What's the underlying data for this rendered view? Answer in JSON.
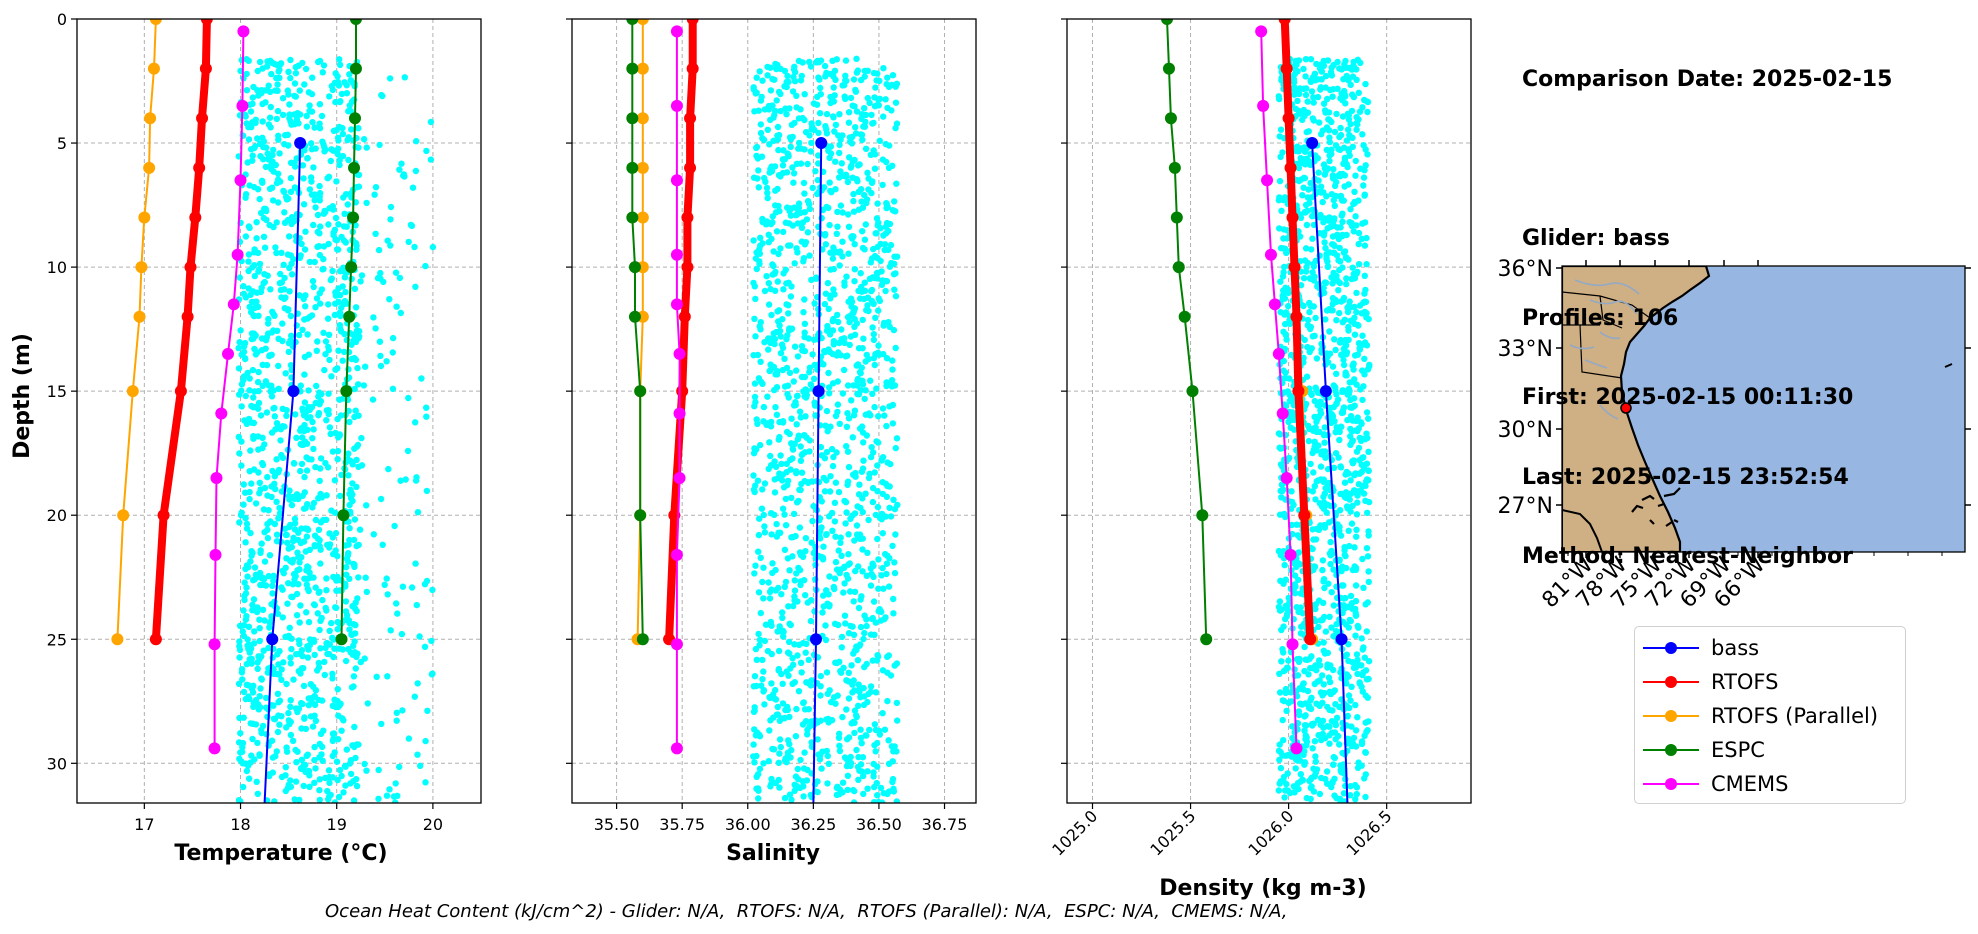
{
  "info": {
    "comparison_date": "Comparison Date: 2025-02-15",
    "glider": "Glider: bass",
    "profiles": "Profiles: 106",
    "first": "First: 2025-02-15 00:11:30",
    "last": "Last: 2025-02-15 23:52:54",
    "method": "Method: Nearest-Neighbor"
  },
  "footer": "Ocean Heat Content (kJ/cm^2) - Glider: N/A,  RTOFS: N/A,  RTOFS (Parallel): N/A,  ESPC: N/A,  CMEMS: N/A,",
  "legend": [
    {
      "name": "bass",
      "color": "#0000ff"
    },
    {
      "name": "RTOFS",
      "color": "#ff0000"
    },
    {
      "name": "RTOFS (Parallel)",
      "color": "#ffa500"
    },
    {
      "name": "ESPC",
      "color": "#008000"
    },
    {
      "name": "CMEMS",
      "color": "#ff00ff"
    }
  ],
  "colors": {
    "scatter": "#00ffff",
    "ocean": "#97b6e1",
    "land": "#cfaf84",
    "marker": "#ff0000"
  },
  "chart_data": [
    {
      "type": "line",
      "xlabel": "Temperature (°C)",
      "ylabel": "Depth (m)",
      "xlim": [
        16.3,
        20.5
      ],
      "ylim": [
        31.6,
        0
      ],
      "grid": true,
      "xticks": [
        17,
        18,
        19,
        20
      ],
      "yticks": [
        0,
        5,
        10,
        15,
        20,
        25,
        30
      ],
      "series": [
        {
          "name": "bass",
          "depth": [
            5,
            15,
            25,
            31.6
          ],
          "values": [
            18.62,
            18.55,
            18.33,
            18.25
          ]
        },
        {
          "name": "RTOFS",
          "depth": [
            0,
            2,
            4,
            6,
            8,
            10,
            12,
            15,
            20,
            25
          ],
          "values": [
            17.65,
            17.64,
            17.6,
            17.57,
            17.53,
            17.48,
            17.45,
            17.38,
            17.2,
            17.12
          ]
        },
        {
          "name": "RTOFS (Parallel)",
          "depth": [
            0,
            2,
            4,
            6,
            8,
            10,
            12,
            15,
            20,
            25
          ],
          "values": [
            17.12,
            17.1,
            17.06,
            17.05,
            17.0,
            16.97,
            16.95,
            16.88,
            16.78,
            16.72
          ]
        },
        {
          "name": "ESPC",
          "depth": [
            0,
            2,
            4,
            6,
            8,
            10,
            12,
            15,
            20,
            25
          ],
          "values": [
            19.2,
            19.2,
            19.19,
            19.18,
            19.17,
            19.15,
            19.13,
            19.1,
            19.07,
            19.05
          ]
        },
        {
          "name": "CMEMS",
          "depth": [
            0.5,
            3.5,
            6.5,
            9.5,
            11.5,
            13.5,
            15.9,
            18.5,
            21.6,
            25.2,
            29.4
          ],
          "values": [
            18.03,
            18.02,
            18.0,
            17.97,
            17.93,
            17.87,
            17.8,
            17.75,
            17.74,
            17.73,
            17.73
          ]
        }
      ],
      "scatter": {
        "name": "bass",
        "depth_range": [
          1.6,
          31.6
        ],
        "x_center": 18.55,
        "x_spread": [
          17.98,
          20.0
        ]
      }
    },
    {
      "type": "line",
      "xlabel": "Salinity",
      "xlim": [
        35.33,
        36.87
      ],
      "ylim": [
        31.6,
        0
      ],
      "grid": true,
      "xticks": [
        "35.50",
        "35.75",
        "36.00",
        "36.25",
        "36.50",
        "36.75"
      ],
      "series": [
        {
          "name": "bass",
          "depth": [
            5,
            15,
            25,
            31.6
          ],
          "values": [
            36.28,
            36.27,
            36.26,
            36.25
          ]
        },
        {
          "name": "RTOFS",
          "depth": [
            0,
            2,
            4,
            6,
            8,
            10,
            12,
            15,
            20,
            25
          ],
          "values": [
            35.79,
            35.79,
            35.78,
            35.78,
            35.77,
            35.77,
            35.76,
            35.75,
            35.72,
            35.7
          ]
        },
        {
          "name": "RTOFS (Parallel)",
          "depth": [
            0,
            2,
            4,
            6,
            8,
            10,
            12,
            15,
            20,
            25
          ],
          "values": [
            35.6,
            35.6,
            35.6,
            35.6,
            35.6,
            35.6,
            35.6,
            35.59,
            35.59,
            35.58
          ]
        },
        {
          "name": "ESPC",
          "depth": [
            0,
            2,
            4,
            6,
            8,
            10,
            12,
            15,
            20,
            25
          ],
          "values": [
            35.56,
            35.56,
            35.56,
            35.56,
            35.56,
            35.57,
            35.57,
            35.59,
            35.59,
            35.6
          ]
        },
        {
          "name": "CMEMS",
          "depth": [
            0.5,
            3.5,
            6.5,
            9.5,
            11.5,
            13.5,
            15.9,
            18.5,
            21.6,
            25.2,
            29.4
          ],
          "values": [
            35.73,
            35.73,
            35.73,
            35.73,
            35.73,
            35.74,
            35.74,
            35.74,
            35.73,
            35.73,
            35.73
          ]
        }
      ],
      "scatter": {
        "name": "bass",
        "depth_range": [
          1.6,
          31.6
        ],
        "x_center": 36.27,
        "x_spread": [
          36.02,
          36.5
        ]
      }
    },
    {
      "type": "line",
      "xlabel": "Density (kg m-3)",
      "xlim": [
        1024.87,
        1026.93
      ],
      "ylim": [
        31.6,
        0
      ],
      "grid": true,
      "xticks": [
        "1025.0",
        "1025.5",
        "1026.0",
        "1026.5"
      ],
      "series": [
        {
          "name": "bass",
          "depth": [
            5,
            15,
            25,
            31.6
          ],
          "values": [
            1026.12,
            1026.19,
            1026.27,
            1026.3
          ]
        },
        {
          "name": "RTOFS",
          "depth": [
            0,
            2,
            4,
            6,
            8,
            10,
            12,
            15,
            20,
            25
          ],
          "values": [
            1025.98,
            1025.99,
            1026.0,
            1026.01,
            1026.02,
            1026.03,
            1026.04,
            1026.05,
            1026.08,
            1026.11
          ]
        },
        {
          "name": "RTOFS (Parallel)",
          "depth": [
            0,
            2,
            4,
            6,
            8,
            10,
            12,
            15,
            20,
            25
          ],
          "values": [
            1025.98,
            1025.99,
            1026.0,
            1026.01,
            1026.02,
            1026.03,
            1026.04,
            1026.07,
            1026.09,
            1026.12
          ]
        },
        {
          "name": "ESPC",
          "depth": [
            0,
            2,
            4,
            6,
            8,
            10,
            12,
            15,
            20,
            25
          ],
          "values": [
            1025.38,
            1025.39,
            1025.4,
            1025.42,
            1025.43,
            1025.44,
            1025.47,
            1025.51,
            1025.56,
            1025.58
          ]
        },
        {
          "name": "CMEMS",
          "depth": [
            0.5,
            3.5,
            6.5,
            9.5,
            11.5,
            13.5,
            15.9,
            18.5,
            21.6,
            25.2,
            29.4
          ],
          "values": [
            1025.86,
            1025.87,
            1025.89,
            1025.91,
            1025.93,
            1025.95,
            1025.97,
            1025.99,
            1026.01,
            1026.02,
            1026.04
          ]
        }
      ],
      "scatter": {
        "name": "bass",
        "depth_range": [
          1.6,
          31.6
        ],
        "x_center": 1026.16,
        "x_spread": [
          1025.95,
          1026.36
        ]
      }
    }
  ],
  "map": {
    "lat_ticks": [
      "36°N",
      "33°N",
      "30°N",
      "27°N"
    ],
    "lon_ticks": [
      "81°W",
      "78°W",
      "75°W",
      "72°W",
      "69°W",
      "66°W"
    ],
    "glider_position": {
      "lat": 30.9,
      "lon": -80.9
    }
  }
}
